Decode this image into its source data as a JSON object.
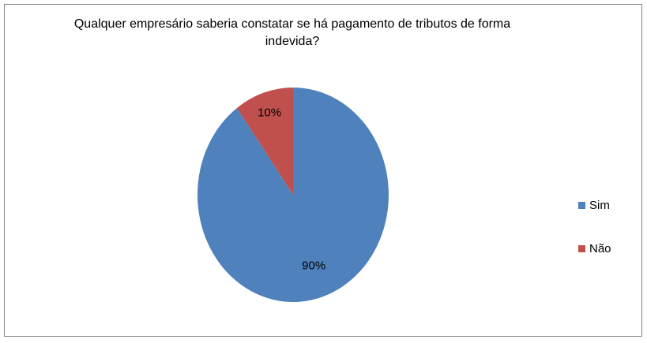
{
  "chart_data": {
    "type": "pie",
    "title": "Qualquer empresário saberia constatar se há pagamento de tributos de forma indevida?",
    "categories": [
      "Sim",
      "Não"
    ],
    "values": [
      90,
      10
    ],
    "value_labels": [
      "90%",
      "10%"
    ],
    "colors": [
      "#4f81bd",
      "#c0504d"
    ],
    "legend": "right"
  }
}
